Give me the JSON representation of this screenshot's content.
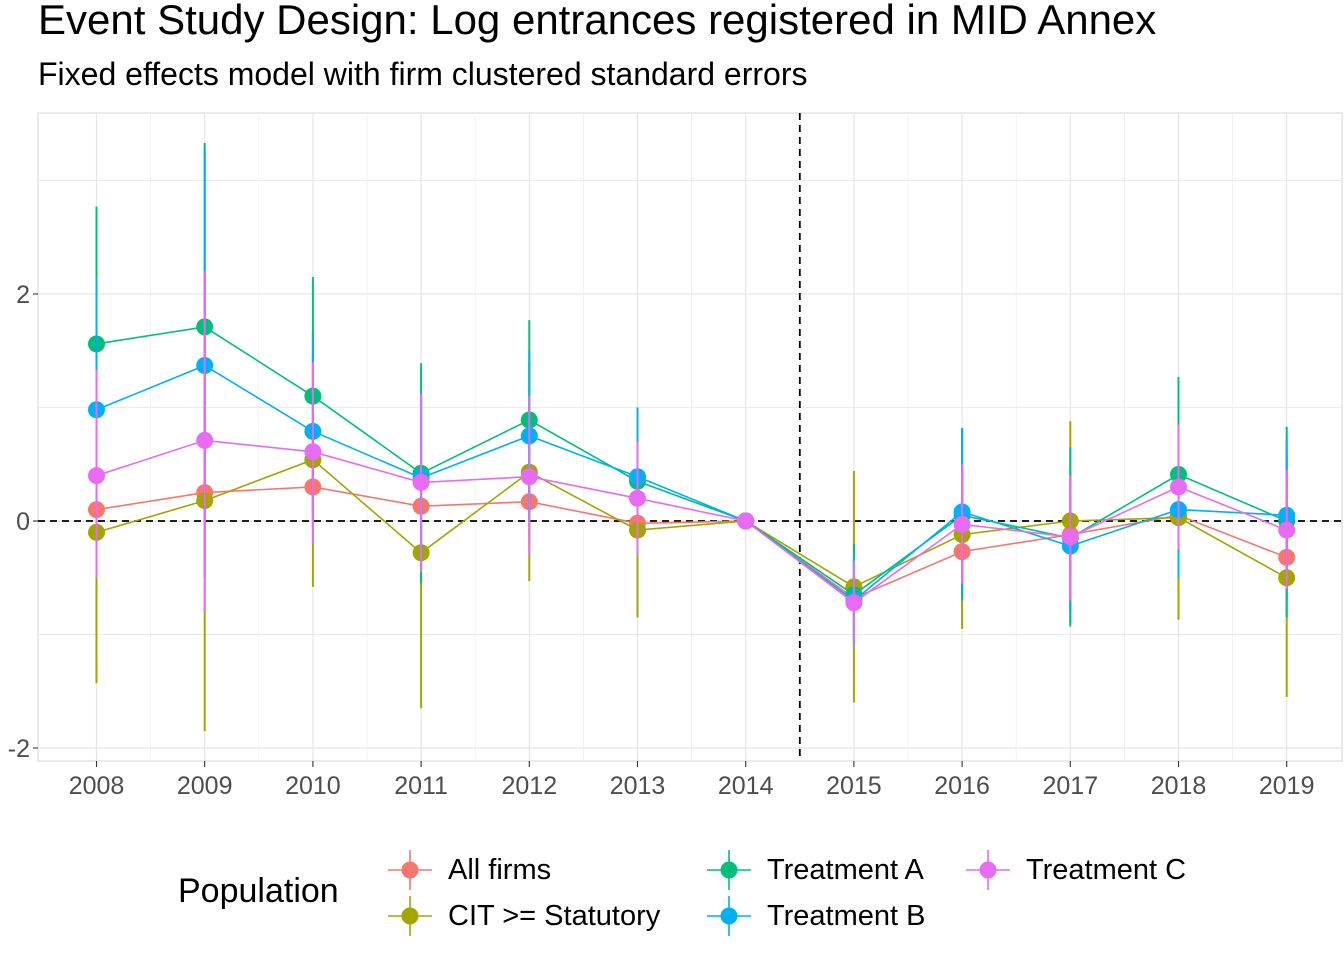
{
  "chart_data": {
    "type": "line",
    "title": "Event Study Design: Log entrances registered in MID Annex",
    "subtitle": "Fixed effects model with firm clustered standard errors",
    "xlabel": "",
    "ylabel": "",
    "categories": [
      "2008",
      "2009",
      "2010",
      "2011",
      "2012",
      "2013",
      "2014",
      "2015",
      "2016",
      "2017",
      "2018",
      "2019"
    ],
    "yticks": [
      "-2",
      "0",
      "2"
    ],
    "ylim": [
      -2.05,
      3.5
    ],
    "grid": true,
    "reference_lines": {
      "horizontal": 0,
      "vertical_between": [
        "2014",
        "2015"
      ]
    },
    "legend": {
      "title": "Population",
      "position": "bottom"
    },
    "series": [
      {
        "name": "All firms",
        "color": "#F8766D",
        "values": [
          0.1,
          0.25,
          0.3,
          0.13,
          0.17,
          -0.02,
          0.0,
          -0.68,
          -0.27,
          -0.12,
          0.05,
          -0.32
        ],
        "lower": [
          -0.2,
          -0.4,
          -0.1,
          -0.4,
          -0.2,
          -0.3,
          0.0,
          -1.0,
          -0.6,
          -0.45,
          -0.3,
          -0.7
        ],
        "upper": [
          0.4,
          0.9,
          0.7,
          0.65,
          0.55,
          0.25,
          0.0,
          -0.35,
          0.05,
          0.2,
          0.4,
          0.05
        ]
      },
      {
        "name": "CIT >= Statutory",
        "color": "#A3A500",
        "values": [
          -0.1,
          0.18,
          0.54,
          -0.28,
          0.43,
          -0.08,
          0.0,
          -0.58,
          -0.12,
          0.0,
          0.03,
          -0.5
        ],
        "lower": [
          -1.43,
          -1.85,
          -0.58,
          -1.65,
          -0.53,
          -0.85,
          0.0,
          -1.6,
          -0.95,
          -0.9,
          -0.87,
          -1.55
        ],
        "upper": [
          1.25,
          2.2,
          1.67,
          1.1,
          1.4,
          0.7,
          0.0,
          0.44,
          0.73,
          0.88,
          0.93,
          0.57
        ]
      },
      {
        "name": "Treatment A",
        "color": "#00BF7D",
        "values": [
          1.56,
          1.71,
          1.1,
          0.42,
          0.89,
          0.35,
          0.0,
          -0.65,
          0.05,
          -0.15,
          0.41,
          0.0
        ],
        "lower": [
          0.35,
          0.1,
          0.05,
          -0.55,
          0.0,
          -0.3,
          0.0,
          -1.1,
          -0.7,
          -0.93,
          -0.45,
          -0.85
        ],
        "upper": [
          2.77,
          3.33,
          2.15,
          1.39,
          1.77,
          1.0,
          0.0,
          -0.2,
          0.82,
          0.65,
          1.27,
          0.83
        ]
      },
      {
        "name": "Treatment B",
        "color": "#00B0F6",
        "values": [
          0.98,
          1.37,
          0.79,
          0.38,
          0.75,
          0.39,
          0.0,
          -0.7,
          0.08,
          -0.22,
          0.1,
          0.05
        ],
        "lower": [
          -0.2,
          -0.5,
          -0.05,
          -0.4,
          0.0,
          -0.2,
          0.0,
          -1.1,
          -0.6,
          -0.8,
          -0.5,
          -0.6
        ],
        "upper": [
          2.15,
          3.25,
          1.62,
          1.15,
          1.5,
          0.98,
          0.0,
          -0.3,
          0.8,
          0.35,
          0.7,
          0.72
        ]
      },
      {
        "name": "Treatment C",
        "color": "#E76BF3",
        "values": [
          0.4,
          0.71,
          0.61,
          0.34,
          0.39,
          0.2,
          0.0,
          -0.72,
          -0.03,
          -0.14,
          0.3,
          -0.08
        ],
        "lower": [
          -0.5,
          -0.8,
          -0.2,
          -0.45,
          -0.3,
          -0.3,
          0.0,
          -1.1,
          -0.55,
          -0.7,
          -0.25,
          -0.6
        ],
        "upper": [
          1.33,
          2.2,
          1.4,
          1.12,
          1.1,
          0.7,
          0.0,
          -0.35,
          0.5,
          0.4,
          0.85,
          0.45
        ]
      }
    ]
  }
}
